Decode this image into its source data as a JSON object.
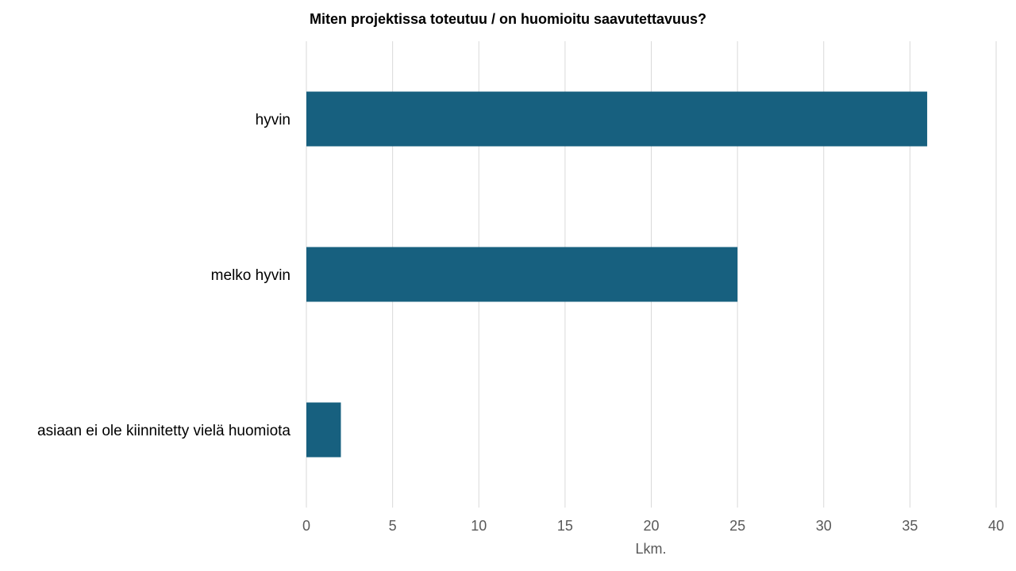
{
  "chart_data": {
    "type": "bar",
    "orientation": "horizontal",
    "title": "Miten projektissa toteutuu / on huomioitu saavutettavuus?",
    "categories": [
      "hyvin",
      "melko hyvin",
      "asiaan ei ole kiinnitetty vielä huomiota"
    ],
    "values": [
      36,
      25,
      2
    ],
    "xlabel": "Lkm.",
    "ylabel": "",
    "xlim": [
      0,
      40
    ],
    "xticks": [
      0,
      5,
      10,
      15,
      20,
      25,
      30,
      35,
      40
    ],
    "bar_color": "#17607f",
    "grid": "vertical",
    "legend": "none"
  }
}
